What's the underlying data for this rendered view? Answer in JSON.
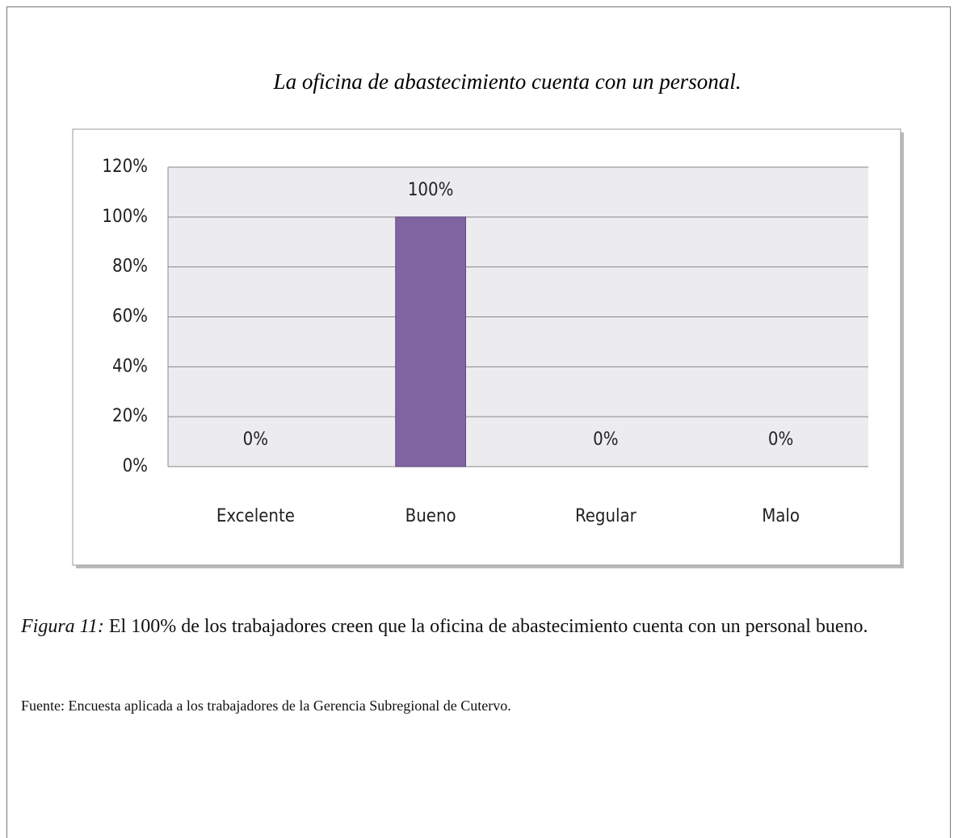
{
  "heading": "La oficina de abastecimiento cuenta con un personal.",
  "chart_data": {
    "type": "bar",
    "categories": [
      "Excelente",
      "Bueno",
      "Regular",
      "Malo"
    ],
    "values": [
      0,
      100,
      0,
      0
    ],
    "value_labels": [
      "0%",
      "100%",
      "0%",
      "0%"
    ],
    "color": "#8064a2",
    "ylim": [
      0,
      120
    ],
    "yticks": [
      {
        "value": 0,
        "label": "0%"
      },
      {
        "value": 20,
        "label": "20%"
      },
      {
        "value": 40,
        "label": "40%"
      },
      {
        "value": 60,
        "label": "60%"
      },
      {
        "value": 80,
        "label": "80%"
      },
      {
        "value": 100,
        "label": "100%"
      },
      {
        "value": 120,
        "label": "120%"
      }
    ],
    "grid": true
  },
  "caption": {
    "label": "Figura 11:",
    "text": "El 100% de los trabajadores creen que la oficina de abastecimiento cuenta con un personal bueno."
  },
  "source": "Fuente: Encuesta aplicada a los trabajadores de la Gerencia Subregional de Cutervo."
}
